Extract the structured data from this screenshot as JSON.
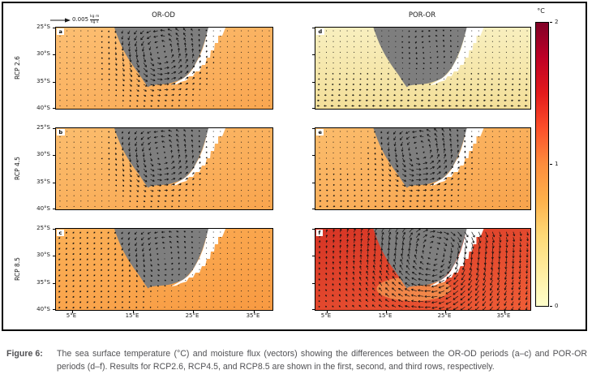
{
  "figure": {
    "quiver_key": {
      "value": "0.005",
      "unit_numerator": "kg m",
      "unit_denominator": "kg s"
    },
    "column_titles": [
      "OR-OD",
      "POR-OR"
    ],
    "row_labels": [
      "RCP 2.6",
      "RCP 4.5",
      "RCP 8.5"
    ],
    "y_ticks": [
      "25°S",
      "30°S",
      "35°S",
      "40°S"
    ],
    "x_ticks": [
      "5°E",
      "15°E",
      "25°E",
      "35°E"
    ],
    "panels": [
      {
        "letter": "a",
        "row": "RCP 2.6",
        "column": "OR-OD"
      },
      {
        "letter": "b",
        "row": "RCP 4.5",
        "column": "OR-OD"
      },
      {
        "letter": "c",
        "row": "RCP 8.5",
        "column": "OR-OD"
      },
      {
        "letter": "d",
        "row": "RCP 2.6",
        "column": "POR-OR"
      },
      {
        "letter": "e",
        "row": "RCP 4.5",
        "column": "POR-OR"
      },
      {
        "letter": "f",
        "row": "RCP 8.5",
        "column": "POR-OR"
      }
    ],
    "colorbar": {
      "label": "°C",
      "ticks_top_to_bottom": [
        "2",
        "1",
        "0"
      ],
      "min": 0,
      "max": 2,
      "colormap": "YlOrRd"
    }
  },
  "caption": {
    "label": "Figure 6:",
    "text": "The sea surface temperature (°C) and moisture flux (vectors) showing the differences between the OR-OD periods (a–c) and POR-OR periods (d–f). Results for RCP2.6, RCP4.5, and RCP8.5 are shown in the first, second, and third rows, respectively."
  },
  "chart_data": {
    "type": "heatmap",
    "variable": "sea surface temperature difference",
    "units": "°C",
    "color_range": [
      0,
      2
    ],
    "colormap": "YlOrRd",
    "x_axis": {
      "ticks": [
        "5°E",
        "15°E",
        "25°E",
        "35°E"
      ]
    },
    "y_axis": {
      "ticks": [
        "25°S",
        "30°S",
        "35°S",
        "40°S"
      ]
    },
    "vector_key": {
      "value": 0.005,
      "units": "kg m / kg s",
      "meaning": "moisture flux"
    },
    "panels": [
      {
        "letter": "a",
        "scenario": "RCP 2.6",
        "difference": "OR-OD",
        "approx_ocean_value_c": 0.9,
        "vectors": "weak over ocean; anticlockwise swirl over the land interior"
      },
      {
        "letter": "b",
        "scenario": "RCP 4.5",
        "difference": "OR-OD",
        "approx_ocean_value_c": 0.9,
        "vectors": "weak over ocean; swirl over the land interior"
      },
      {
        "letter": "c",
        "scenario": "RCP 8.5",
        "difference": "OR-OD",
        "approx_ocean_value_c": 1.0,
        "vectors": "moderate southwestward flow west of the coast"
      },
      {
        "letter": "d",
        "scenario": "RCP 2.6",
        "difference": "POR-OR",
        "approx_ocean_value_c": 0.3,
        "vectors": "weak westward flow south of the continent"
      },
      {
        "letter": "e",
        "scenario": "RCP 4.5",
        "difference": "POR-OR",
        "approx_ocean_value_c": 0.9,
        "vectors": "moderate eastward flow in the southern ocean band"
      },
      {
        "letter": "f",
        "scenario": "RCP 8.5",
        "difference": "POR-OR",
        "approx_ocean_value_c": 1.7,
        "vectors": "strong cyclonic vortex centred over land, strong flow over ocean"
      }
    ]
  }
}
